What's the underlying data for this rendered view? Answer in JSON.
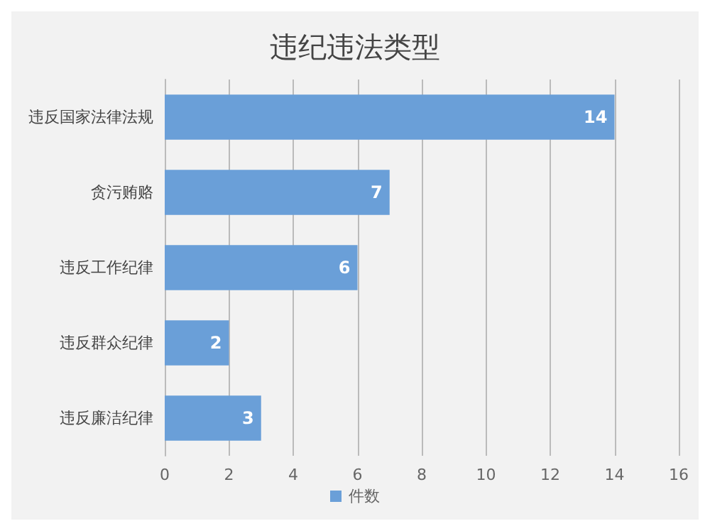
{
  "chart_data": {
    "type": "bar",
    "orientation": "horizontal",
    "title": "违纪违法类型",
    "categories": [
      "违反国家法律法规",
      "贪污贿赂",
      "违反工作纪律",
      "违反群众纪律",
      "违反廉洁纪律"
    ],
    "series": [
      {
        "name": "件数",
        "color": "#6a9fd8",
        "values": [
          14,
          7,
          6,
          2,
          3
        ]
      }
    ],
    "xlim": [
      0,
      16
    ],
    "xticks": [
      0,
      2,
      4,
      6,
      8,
      10,
      12,
      14,
      16
    ],
    "grid": "x",
    "legend": "bottom",
    "data_labels": true
  }
}
